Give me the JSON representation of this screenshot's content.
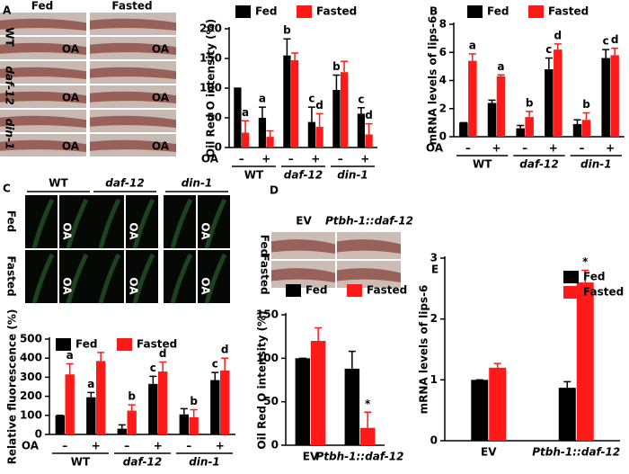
{
  "micrographs": {
    "A": {
      "columns": [
        "Fed",
        "Fasted"
      ],
      "rows": [
        "WT",
        "daf-12",
        "din-1"
      ],
      "marker": "OA"
    },
    "C": {
      "columns": [
        "WT",
        "daf-12",
        "din-1"
      ],
      "rows": [
        "Fed",
        "Fasted"
      ],
      "marker": "OA"
    },
    "D": {
      "columns": [
        "EV",
        "Ptbh-1::daf-12"
      ],
      "rows": [
        "Fed",
        "Fasted"
      ]
    }
  },
  "chart_data": [
    {
      "type": "bar",
      "panel": "A",
      "y_label": "Oil Red O intensity (%)",
      "x_label": "OA",
      "categories": [
        "–",
        "+",
        "–",
        "+",
        "–",
        "+"
      ],
      "groups": [
        "WT",
        "daf-12",
        "din-1"
      ],
      "ylim": [
        0,
        200
      ],
      "yticks": [
        0,
        50,
        100,
        150,
        200
      ],
      "legend": "top",
      "series": [
        {
          "name": "Fed",
          "color": "#000000",
          "values": [
            100,
            50,
            155,
            43,
            97,
            57
          ],
          "errors": [
            0,
            18,
            28,
            25,
            25,
            10
          ],
          "letters": [
            null,
            "a",
            "b",
            "c",
            "b",
            "c"
          ]
        },
        {
          "name": "Fasted",
          "color": "#ff1a1a",
          "values": [
            25,
            18,
            147,
            35,
            127,
            22
          ],
          "errors": [
            20,
            10,
            12,
            22,
            18,
            18
          ],
          "letters": [
            "a",
            null,
            null,
            "d",
            null,
            "d"
          ]
        }
      ]
    },
    {
      "type": "bar",
      "panel": "B",
      "y_label": "mRNA levels of lips-6",
      "x_label": "OA",
      "categories": [
        "–",
        "+",
        "–",
        "+",
        "–",
        "+"
      ],
      "groups": [
        "WT",
        "daf-12",
        "din-1"
      ],
      "ylim": [
        0,
        8
      ],
      "yticks": [
        0,
        2,
        4,
        6,
        8
      ],
      "legend": "top",
      "series": [
        {
          "name": "Fed",
          "color": "#000000",
          "values": [
            1,
            2.4,
            0.6,
            4.8,
            0.9,
            5.6
          ],
          "errors": [
            0,
            0.2,
            0.2,
            0.8,
            0.3,
            0.6
          ],
          "letters": [
            null,
            null,
            null,
            "c",
            null,
            "c"
          ]
        },
        {
          "name": "Fasted",
          "color": "#ff1a1a",
          "values": [
            5.4,
            4.3,
            1.4,
            6.2,
            1.2,
            5.8
          ],
          "errors": [
            0.5,
            0.1,
            0.4,
            0.4,
            0.5,
            0.5
          ],
          "letters": [
            "a",
            "a",
            "b",
            "d",
            "b",
            "d"
          ]
        }
      ]
    },
    {
      "type": "bar",
      "panel": "C",
      "y_label": "Relative fluorescence (%)",
      "x_label": "OA",
      "categories": [
        "–",
        "+",
        "–",
        "+",
        "–",
        "+"
      ],
      "groups": [
        "WT",
        "daf-12",
        "din-1"
      ],
      "ylim": [
        0,
        500
      ],
      "yticks": [
        0,
        100,
        200,
        300,
        400,
        500
      ],
      "legend": "top",
      "series": [
        {
          "name": "Fed",
          "color": "#000000",
          "values": [
            100,
            195,
            30,
            265,
            105,
            285
          ],
          "errors": [
            0,
            25,
            20,
            40,
            30,
            40
          ],
          "letters": [
            null,
            "a",
            null,
            "c",
            null,
            "c"
          ]
        },
        {
          "name": "Fasted",
          "color": "#ff1a1a",
          "values": [
            315,
            385,
            125,
            330,
            90,
            335
          ],
          "errors": [
            55,
            45,
            30,
            50,
            40,
            65
          ],
          "letters": [
            "a",
            null,
            "b",
            "d",
            "b",
            "d"
          ]
        }
      ]
    },
    {
      "type": "bar",
      "panel": "D",
      "y_label": "Oil Red O intensity (%)",
      "categories": [
        "EV",
        "Ptbh-1::daf-12"
      ],
      "ylim": [
        0,
        150
      ],
      "yticks": [
        0,
        50,
        100,
        150
      ],
      "legend": "top",
      "series": [
        {
          "name": "Fed",
          "color": "#000000",
          "values": [
            100,
            88
          ],
          "errors": [
            0,
            20
          ],
          "letters": [
            null,
            null
          ]
        },
        {
          "name": "Fasted",
          "color": "#ff1a1a",
          "values": [
            120,
            20
          ],
          "errors": [
            15,
            18
          ],
          "letters": [
            null,
            "*"
          ]
        }
      ]
    },
    {
      "type": "bar",
      "panel": "E",
      "y_label": "mRNA levels of lips-6",
      "categories": [
        "EV",
        "Ptbh-1::daf-12"
      ],
      "ylim": [
        0,
        3
      ],
      "yticks": [
        0,
        1,
        2,
        3
      ],
      "legend": "right",
      "series": [
        {
          "name": "Fed",
          "color": "#000000",
          "values": [
            1,
            0.87
          ],
          "errors": [
            0,
            0.1
          ],
          "letters": [
            null,
            null
          ]
        },
        {
          "name": "Fasted",
          "color": "#ff1a1a",
          "values": [
            1.2,
            2.6
          ],
          "errors": [
            0.07,
            0.2
          ],
          "letters": [
            null,
            "*"
          ]
        }
      ]
    }
  ]
}
